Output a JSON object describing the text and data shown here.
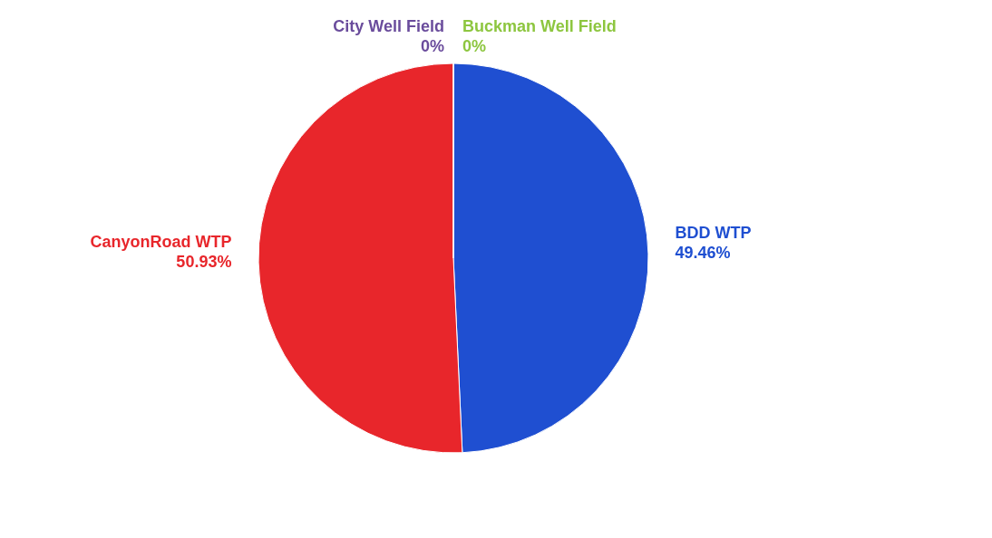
{
  "chart_data": {
    "type": "pie",
    "categories": [
      "Buckman Well Field",
      "BDD WTP",
      "CanyonRoad WTP",
      "City Well Field"
    ],
    "values": [
      0,
      49.46,
      50.93,
      0
    ],
    "colors": [
      "#8dc63f",
      "#1f4fd1",
      "#e8262b",
      "#6a4c9c"
    ],
    "value_labels": [
      "0%",
      "49.46%",
      "50.93%",
      "0%"
    ],
    "legend": false
  }
}
